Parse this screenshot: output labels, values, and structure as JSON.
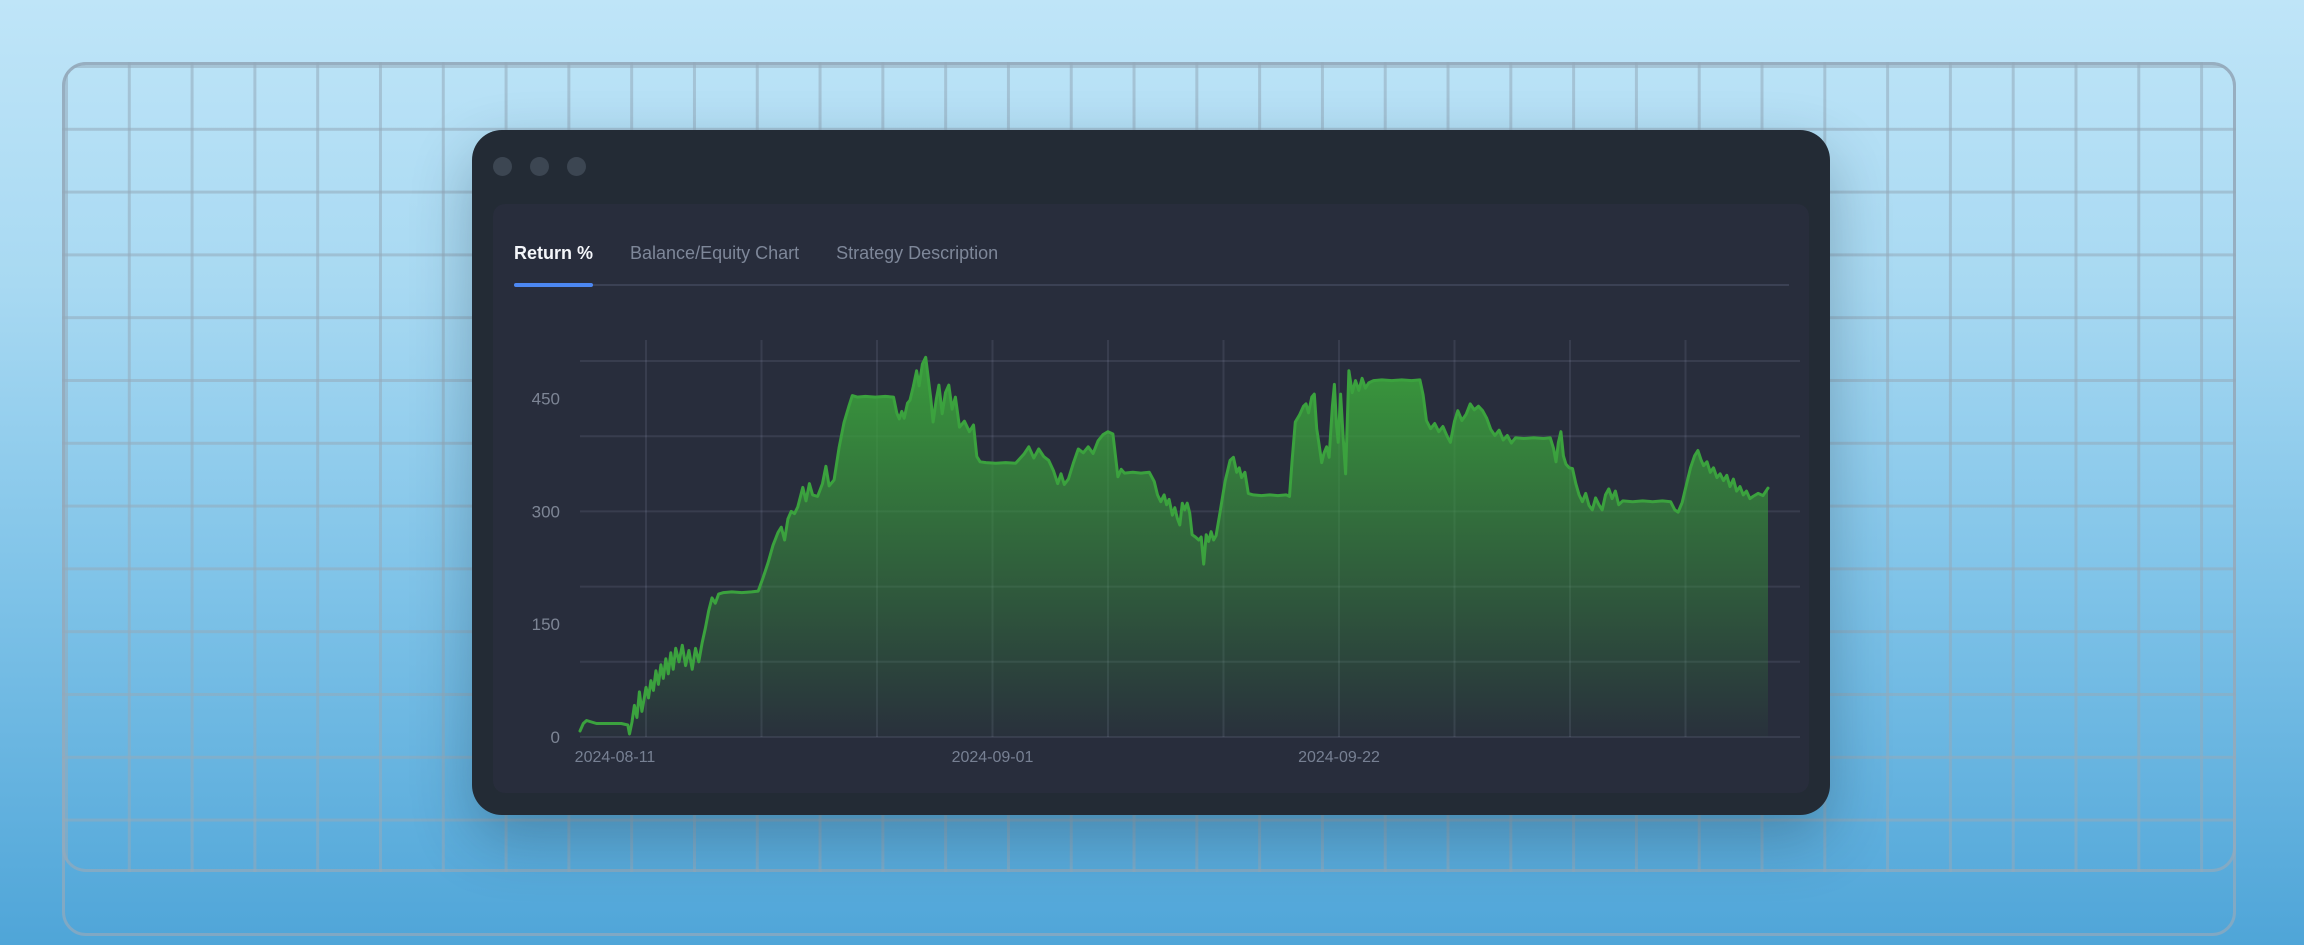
{
  "window": {
    "controls": [
      "window-control-1",
      "window-control-2",
      "window-control-3"
    ]
  },
  "tabs": [
    {
      "label": "Return %",
      "active": true
    },
    {
      "label": "Balance/Equity Chart",
      "active": false
    },
    {
      "label": "Strategy Description",
      "active": false
    }
  ],
  "colors": {
    "accent_underline": "#4C87F2",
    "line": "#3BA23E",
    "fill_top": "rgba(58,160,60,0.95)",
    "fill_bottom": "rgba(58,160,60,0.03)",
    "gridline": "rgba(170,185,215,0.12)",
    "panel_bg": "#282D3C",
    "frame_bg": "#232B35"
  },
  "chart_data": {
    "type": "area",
    "title": "Return %",
    "xlabel": "",
    "ylabel": "",
    "x_unit": "days since 2024-08-07",
    "ylim": [
      0,
      528
    ],
    "grid": true,
    "legend": "none",
    "y_tick_labels": [
      0,
      150,
      300,
      450
    ],
    "y_gridline_values": [
      0,
      100,
      200,
      300,
      400,
      500
    ],
    "x_gridline_days": [
      4,
      11,
      18,
      25,
      32,
      39,
      46,
      53,
      60,
      67
    ],
    "x_ticks": [
      {
        "day": 4,
        "label": "2024-08-11"
      },
      {
        "day": 25,
        "label": "2024-09-01"
      },
      {
        "day": 46,
        "label": "2024-09-22"
      }
    ],
    "points": [
      [
        0,
        8
      ],
      [
        0.2,
        18
      ],
      [
        0.4,
        22
      ],
      [
        0.7,
        20
      ],
      [
        1,
        18
      ],
      [
        1.5,
        18
      ],
      [
        2,
        18
      ],
      [
        2.5,
        18
      ],
      [
        2.9,
        16
      ],
      [
        3,
        4
      ],
      [
        3.15,
        20
      ],
      [
        3.3,
        42
      ],
      [
        3.45,
        26
      ],
      [
        3.6,
        60
      ],
      [
        3.75,
        34
      ],
      [
        3.9,
        52
      ],
      [
        4,
        66
      ],
      [
        4.15,
        52
      ],
      [
        4.3,
        75
      ],
      [
        4.45,
        62
      ],
      [
        4.6,
        88
      ],
      [
        4.75,
        70
      ],
      [
        4.9,
        96
      ],
      [
        5.05,
        78
      ],
      [
        5.2,
        104
      ],
      [
        5.35,
        84
      ],
      [
        5.5,
        112
      ],
      [
        5.65,
        90
      ],
      [
        5.8,
        118
      ],
      [
        6,
        100
      ],
      [
        6.2,
        122
      ],
      [
        6.4,
        95
      ],
      [
        6.6,
        115
      ],
      [
        6.8,
        90
      ],
      [
        7,
        118
      ],
      [
        7.2,
        100
      ],
      [
        7.4,
        125
      ],
      [
        7.6,
        145
      ],
      [
        7.8,
        168
      ],
      [
        8,
        185
      ],
      [
        8.2,
        178
      ],
      [
        8.4,
        190
      ],
      [
        8.7,
        192
      ],
      [
        9.2,
        193
      ],
      [
        9.8,
        192
      ],
      [
        10.4,
        193
      ],
      [
        10.8,
        194
      ],
      [
        11.1,
        212
      ],
      [
        11.4,
        232
      ],
      [
        11.7,
        255
      ],
      [
        12,
        272
      ],
      [
        12.2,
        279
      ],
      [
        12.4,
        262
      ],
      [
        12.6,
        290
      ],
      [
        12.8,
        300
      ],
      [
        13,
        297
      ],
      [
        13.2,
        306
      ],
      [
        13.5,
        332
      ],
      [
        13.7,
        314
      ],
      [
        13.9,
        337
      ],
      [
        14.1,
        322
      ],
      [
        14.4,
        320
      ],
      [
        14.7,
        337
      ],
      [
        14.9,
        360
      ],
      [
        15.1,
        334
      ],
      [
        15.4,
        342
      ],
      [
        15.7,
        385
      ],
      [
        16,
        418
      ],
      [
        16.3,
        440
      ],
      [
        16.5,
        454
      ],
      [
        16.8,
        452
      ],
      [
        17.3,
        453
      ],
      [
        17.9,
        452
      ],
      [
        18.5,
        453
      ],
      [
        19,
        452
      ],
      [
        19.2,
        431
      ],
      [
        19.35,
        423
      ],
      [
        19.5,
        433
      ],
      [
        19.65,
        424
      ],
      [
        19.85,
        444
      ],
      [
        20,
        448
      ],
      [
        20.2,
        466
      ],
      [
        20.4,
        487
      ],
      [
        20.55,
        467
      ],
      [
        20.75,
        496
      ],
      [
        20.95,
        505
      ],
      [
        21.1,
        478
      ],
      [
        21.25,
        452
      ],
      [
        21.4,
        419
      ],
      [
        21.6,
        450
      ],
      [
        21.75,
        468
      ],
      [
        21.95,
        430
      ],
      [
        22.15,
        458
      ],
      [
        22.35,
        468
      ],
      [
        22.55,
        436
      ],
      [
        22.75,
        452
      ],
      [
        23,
        412
      ],
      [
        23.3,
        420
      ],
      [
        23.6,
        406
      ],
      [
        23.85,
        415
      ],
      [
        24.05,
        373
      ],
      [
        24.25,
        366
      ],
      [
        24.6,
        365
      ],
      [
        25.2,
        364
      ],
      [
        25.8,
        365
      ],
      [
        26.4,
        364
      ],
      [
        26.9,
        376
      ],
      [
        27.2,
        386
      ],
      [
        27.5,
        371
      ],
      [
        27.8,
        383
      ],
      [
        28.1,
        373
      ],
      [
        28.4,
        368
      ],
      [
        28.7,
        354
      ],
      [
        28.95,
        337
      ],
      [
        29.15,
        350
      ],
      [
        29.35,
        336
      ],
      [
        29.6,
        343
      ],
      [
        29.9,
        364
      ],
      [
        30.2,
        383
      ],
      [
        30.5,
        378
      ],
      [
        30.8,
        386
      ],
      [
        31.1,
        377
      ],
      [
        31.4,
        394
      ],
      [
        31.7,
        402
      ],
      [
        32,
        406
      ],
      [
        32.3,
        403
      ],
      [
        32.6,
        346
      ],
      [
        32.8,
        356
      ],
      [
        33,
        351
      ],
      [
        33.5,
        352
      ],
      [
        34,
        351
      ],
      [
        34.5,
        352
      ],
      [
        34.8,
        340
      ],
      [
        35,
        322
      ],
      [
        35.2,
        313
      ],
      [
        35.4,
        322
      ],
      [
        35.55,
        309
      ],
      [
        35.7,
        316
      ],
      [
        35.9,
        295
      ],
      [
        36.05,
        305
      ],
      [
        36.2,
        291
      ],
      [
        36.35,
        282
      ],
      [
        36.5,
        311
      ],
      [
        36.65,
        302
      ],
      [
        36.8,
        311
      ],
      [
        36.95,
        298
      ],
      [
        37.1,
        269
      ],
      [
        37.3,
        266
      ],
      [
        37.5,
        262
      ],
      [
        37.65,
        266
      ],
      [
        37.8,
        230
      ],
      [
        37.95,
        269
      ],
      [
        38.1,
        260
      ],
      [
        38.25,
        273
      ],
      [
        38.4,
        262
      ],
      [
        38.55,
        268
      ],
      [
        38.8,
        300
      ],
      [
        39.1,
        340
      ],
      [
        39.4,
        368
      ],
      [
        39.6,
        372
      ],
      [
        39.8,
        352
      ],
      [
        39.95,
        358
      ],
      [
        40.1,
        345
      ],
      [
        40.3,
        352
      ],
      [
        40.5,
        324
      ],
      [
        40.8,
        322
      ],
      [
        41.3,
        321
      ],
      [
        41.8,
        322
      ],
      [
        42.3,
        321
      ],
      [
        42.8,
        322
      ],
      [
        43,
        320
      ],
      [
        43.15,
        366
      ],
      [
        43.35,
        419
      ],
      [
        43.6,
        428
      ],
      [
        43.85,
        440
      ],
      [
        44,
        443
      ],
      [
        44.15,
        431
      ],
      [
        44.35,
        452
      ],
      [
        44.5,
        456
      ],
      [
        44.65,
        410
      ],
      [
        44.8,
        388
      ],
      [
        44.95,
        365
      ],
      [
        45.1,
        378
      ],
      [
        45.25,
        386
      ],
      [
        45.4,
        372
      ],
      [
        45.6,
        440
      ],
      [
        45.72,
        469
      ],
      [
        45.85,
        415
      ],
      [
        45.95,
        392
      ],
      [
        46.1,
        456
      ],
      [
        46.25,
        400
      ],
      [
        46.4,
        350
      ],
      [
        46.6,
        487
      ],
      [
        46.8,
        458
      ],
      [
        47,
        474
      ],
      [
        47.2,
        461
      ],
      [
        47.4,
        477
      ],
      [
        47.6,
        464
      ],
      [
        47.8,
        471
      ],
      [
        48.1,
        474
      ],
      [
        48.6,
        475
      ],
      [
        49.2,
        474
      ],
      [
        49.8,
        475
      ],
      [
        50.4,
        474
      ],
      [
        50.9,
        475
      ],
      [
        51.1,
        455
      ],
      [
        51.3,
        421
      ],
      [
        51.55,
        410
      ],
      [
        51.8,
        417
      ],
      [
        52.05,
        406
      ],
      [
        52.3,
        413
      ],
      [
        52.55,
        400
      ],
      [
        52.75,
        392
      ],
      [
        53,
        420
      ],
      [
        53.2,
        434
      ],
      [
        53.45,
        421
      ],
      [
        53.7,
        429
      ],
      [
        53.95,
        443
      ],
      [
        54.2,
        435
      ],
      [
        54.45,
        440
      ],
      [
        54.7,
        434
      ],
      [
        54.95,
        424
      ],
      [
        55.2,
        409
      ],
      [
        55.45,
        401
      ],
      [
        55.7,
        408
      ],
      [
        55.95,
        395
      ],
      [
        56.2,
        401
      ],
      [
        56.45,
        391
      ],
      [
        56.7,
        398
      ],
      [
        57.2,
        397
      ],
      [
        57.8,
        398
      ],
      [
        58.4,
        397
      ],
      [
        58.8,
        398
      ],
      [
        59,
        384
      ],
      [
        59.15,
        366
      ],
      [
        59.3,
        392
      ],
      [
        59.45,
        406
      ],
      [
        59.6,
        374
      ],
      [
        59.75,
        363
      ],
      [
        59.95,
        358
      ],
      [
        60.15,
        357
      ],
      [
        60.35,
        337
      ],
      [
        60.55,
        322
      ],
      [
        60.75,
        313
      ],
      [
        60.95,
        324
      ],
      [
        61.15,
        308
      ],
      [
        61.35,
        302
      ],
      [
        61.55,
        318
      ],
      [
        61.75,
        309
      ],
      [
        61.95,
        302
      ],
      [
        62.15,
        322
      ],
      [
        62.35,
        330
      ],
      [
        62.55,
        317
      ],
      [
        62.75,
        327
      ],
      [
        62.95,
        309
      ],
      [
        63.2,
        314
      ],
      [
        63.8,
        313
      ],
      [
        64.4,
        314
      ],
      [
        65,
        313
      ],
      [
        65.6,
        314
      ],
      [
        66.1,
        313
      ],
      [
        66.35,
        302
      ],
      [
        66.55,
        299
      ],
      [
        66.8,
        312
      ],
      [
        67.05,
        335
      ],
      [
        67.3,
        358
      ],
      [
        67.55,
        374
      ],
      [
        67.75,
        381
      ],
      [
        67.95,
        368
      ],
      [
        68.1,
        361
      ],
      [
        68.3,
        366
      ],
      [
        68.5,
        352
      ],
      [
        68.7,
        358
      ],
      [
        68.9,
        345
      ],
      [
        69.1,
        350
      ],
      [
        69.3,
        341
      ],
      [
        69.5,
        348
      ],
      [
        69.7,
        333
      ],
      [
        69.9,
        343
      ],
      [
        70.1,
        327
      ],
      [
        70.3,
        333
      ],
      [
        70.5,
        322
      ],
      [
        70.7,
        327
      ],
      [
        70.9,
        317
      ],
      [
        71.1,
        320
      ],
      [
        71.4,
        324
      ],
      [
        71.7,
        321
      ],
      [
        72,
        331
      ]
    ]
  }
}
